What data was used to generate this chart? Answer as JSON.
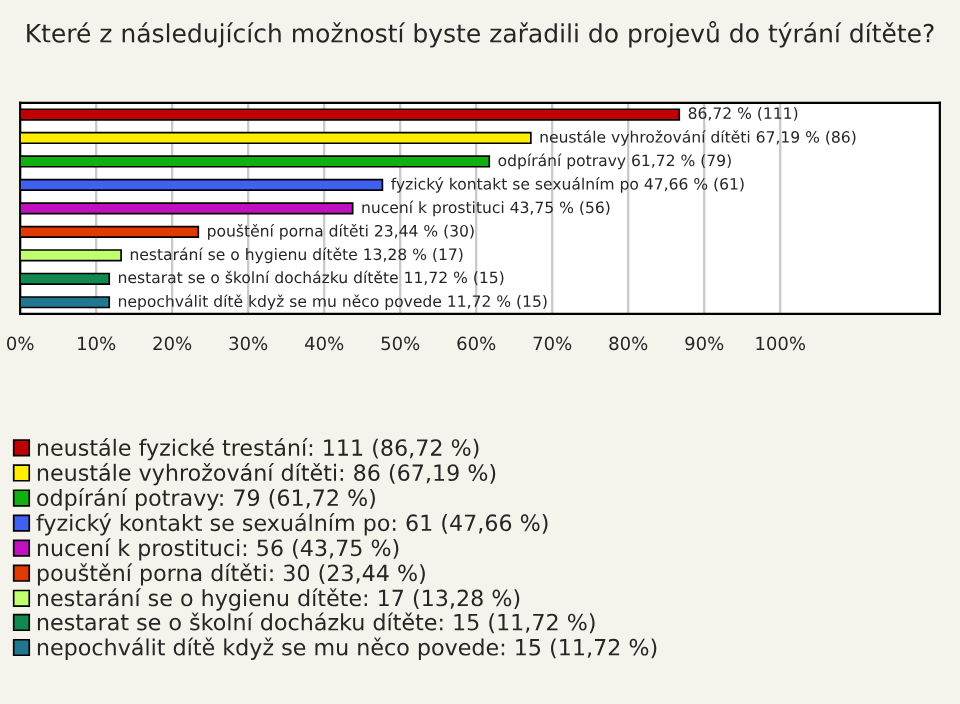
{
  "chart_data": {
    "type": "bar",
    "orientation": "horizontal",
    "title": "Které z následujících možností byste zařadili do projevů do týrání dítěte?",
    "categories": [
      null,
      null,
      null,
      null,
      null,
      null,
      null,
      null,
      null
    ],
    "series": [
      {
        "name": "neustále fyzické trestání: 111 (86,72 %)",
        "color": "#c00000",
        "values": [
          86.72,
          null,
          null,
          null,
          null,
          null,
          null,
          null,
          null
        ],
        "value_labels": [
          "86,72 % (111)",
          null,
          null,
          null,
          null,
          null,
          null,
          null,
          null
        ]
      },
      {
        "name": "neustále vyhrožování dítěti: 86 (67,19 %)",
        "color": "#ffee00",
        "values": [
          null,
          67.19,
          null,
          null,
          null,
          null,
          null,
          null,
          null
        ],
        "value_labels": [
          null,
          "neustále vyhrožování dítěti 67,19 % (86)",
          null,
          null,
          null,
          null,
          null,
          null,
          null
        ]
      },
      {
        "name": "odpírání potravy: 79 (61,72 %)",
        "color": "#10b010",
        "values": [
          null,
          null,
          61.72,
          null,
          null,
          null,
          null,
          null,
          null
        ],
        "value_labels": [
          null,
          null,
          "odpírání potravy 61,72 % (79)",
          null,
          null,
          null,
          null,
          null,
          null
        ]
      },
      {
        "name": "fyzický kontakt se sexuálním po: 61 (47,66 %)",
        "color": "#4060f0",
        "values": [
          null,
          null,
          null,
          47.66,
          null,
          null,
          null,
          null,
          null
        ],
        "value_labels": [
          null,
          null,
          null,
          "fyzický kontakt se sexuálním po 47,66 % (61)",
          null,
          null,
          null,
          null,
          null
        ]
      },
      {
        "name": "nucení k prostituci: 56 (43,75 %)",
        "color": "#c010c0",
        "values": [
          null,
          null,
          null,
          null,
          43.75,
          null,
          null,
          null,
          null
        ],
        "value_labels": [
          null,
          null,
          null,
          null,
          "nucení k prostituci 43,75 % (56)",
          null,
          null,
          null,
          null
        ]
      },
      {
        "name": "pouštění porna dítěti: 30 (23,44 %)",
        "color": "#e03a00",
        "values": [
          null,
          null,
          null,
          null,
          null,
          23.44,
          null,
          null,
          null
        ],
        "value_labels": [
          null,
          null,
          null,
          null,
          null,
          "pouštění porna dítěti 23,44 % (30)",
          null,
          null,
          null
        ]
      },
      {
        "name": "nestarání se o hygienu dítěte: 17 (13,28 %)",
        "color": "#c0ff70",
        "values": [
          null,
          null,
          null,
          null,
          null,
          null,
          13.28,
          null,
          null
        ],
        "value_labels": [
          null,
          null,
          null,
          null,
          null,
          null,
          "nestarání se o hygienu dítěte 13,28 % (17)",
          null,
          null
        ]
      },
      {
        "name": "nestarat se o školní docházku dítěte: 15 (11,72 %)",
        "color": "#108a50",
        "values": [
          null,
          null,
          null,
          null,
          null,
          null,
          null,
          11.72,
          null
        ],
        "value_labels": [
          null,
          null,
          null,
          null,
          null,
          null,
          null,
          "nestarat se o školní docházku dítěte 11,72 % (15)",
          null
        ]
      },
      {
        "name": "nepochválit dítě když se mu něco povede: 15 (11,72 %)",
        "color": "#207890",
        "values": [
          null,
          null,
          null,
          null,
          null,
          null,
          null,
          null,
          11.72
        ],
        "value_labels": [
          null,
          null,
          null,
          null,
          null,
          null,
          null,
          null,
          "nepochválit dítě když se mu něco povede 11,72 % (15)"
        ]
      }
    ],
    "xlim": [
      0,
      121
    ],
    "xticks": [
      {
        "value": 0,
        "label": "0%"
      },
      {
        "value": 10,
        "label": "10%"
      },
      {
        "value": 20,
        "label": "20%"
      },
      {
        "value": 30,
        "label": "30%"
      },
      {
        "value": 40,
        "label": "40%"
      },
      {
        "value": 50,
        "label": "50%"
      },
      {
        "value": 60,
        "label": "60%"
      },
      {
        "value": 70,
        "label": "70%"
      },
      {
        "value": 80,
        "label": "80%"
      },
      {
        "value": 90,
        "label": "90%"
      },
      {
        "value": 100,
        "label": "100%"
      }
    ],
    "tick_labels": "x",
    "grid": "x",
    "legend": "bottom"
  }
}
